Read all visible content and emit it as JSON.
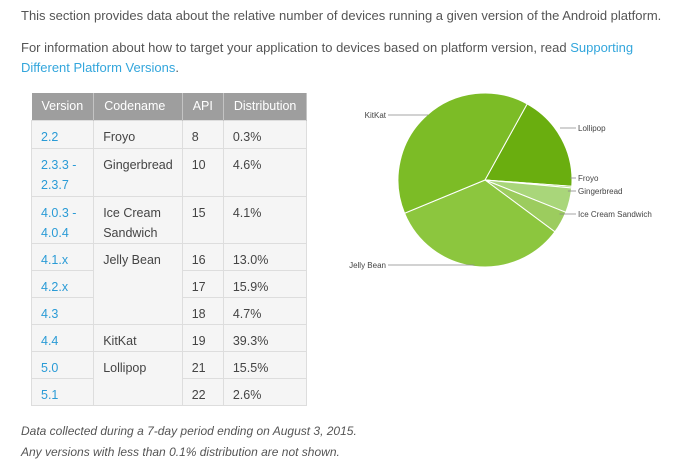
{
  "intro": "This section provides data about the relative number of devices running a given version of the Android platform.",
  "info": {
    "text": "For information about how to target your application to devices based on platform version, read ",
    "link": "Supporting Different Platform Versions",
    "suffix": "."
  },
  "table": {
    "headers": [
      "Version",
      "Codename",
      "API",
      "Distribution"
    ],
    "rows": [
      {
        "version": "2.2",
        "codename": "Froyo",
        "api": "8",
        "dist": "0.3%"
      },
      {
        "version": "2.3.3 -\n2.3.7",
        "codename": "Gingerbread",
        "api": "10",
        "dist": "4.6%"
      },
      {
        "version": "4.0.3 -\n4.0.4",
        "codename": "Ice Cream\nSandwich",
        "api": "15",
        "dist": "4.1%"
      },
      {
        "version": "4.1.x",
        "codename": "Jelly Bean",
        "api": "16",
        "dist": "13.0%"
      },
      {
        "version": "4.2.x",
        "codename": "",
        "api": "17",
        "dist": "15.9%"
      },
      {
        "version": "4.3",
        "codename": "",
        "api": "18",
        "dist": "4.7%"
      },
      {
        "version": "4.4",
        "codename": "KitKat",
        "api": "19",
        "dist": "39.3%"
      },
      {
        "version": "5.0",
        "codename": "Lollipop",
        "api": "21",
        "dist": "15.5%"
      },
      {
        "version": "5.1",
        "codename": "",
        "api": "22",
        "dist": "2.6%"
      }
    ]
  },
  "notes": [
    "Data collected during a 7-day period ending on August 3, 2015.",
    "Any versions with less than 0.1% distribution are not shown."
  ],
  "chart_data": {
    "type": "pie",
    "title": "",
    "slices": [
      {
        "label": "Lollipop",
        "value": 18.1,
        "color": "#6aae0f"
      },
      {
        "label": "Froyo",
        "value": 0.3,
        "color": "#a3cd6e"
      },
      {
        "label": "Gingerbread",
        "value": 4.6,
        "color": "#a9d67a"
      },
      {
        "label": "Ice Cream Sandwich",
        "value": 4.1,
        "color": "#9ccc5e"
      },
      {
        "label": "Jelly Bean",
        "value": 33.6,
        "color": "#8cc63e"
      },
      {
        "label": "KitKat",
        "value": 39.3,
        "color": "#7cbc26"
      }
    ]
  }
}
